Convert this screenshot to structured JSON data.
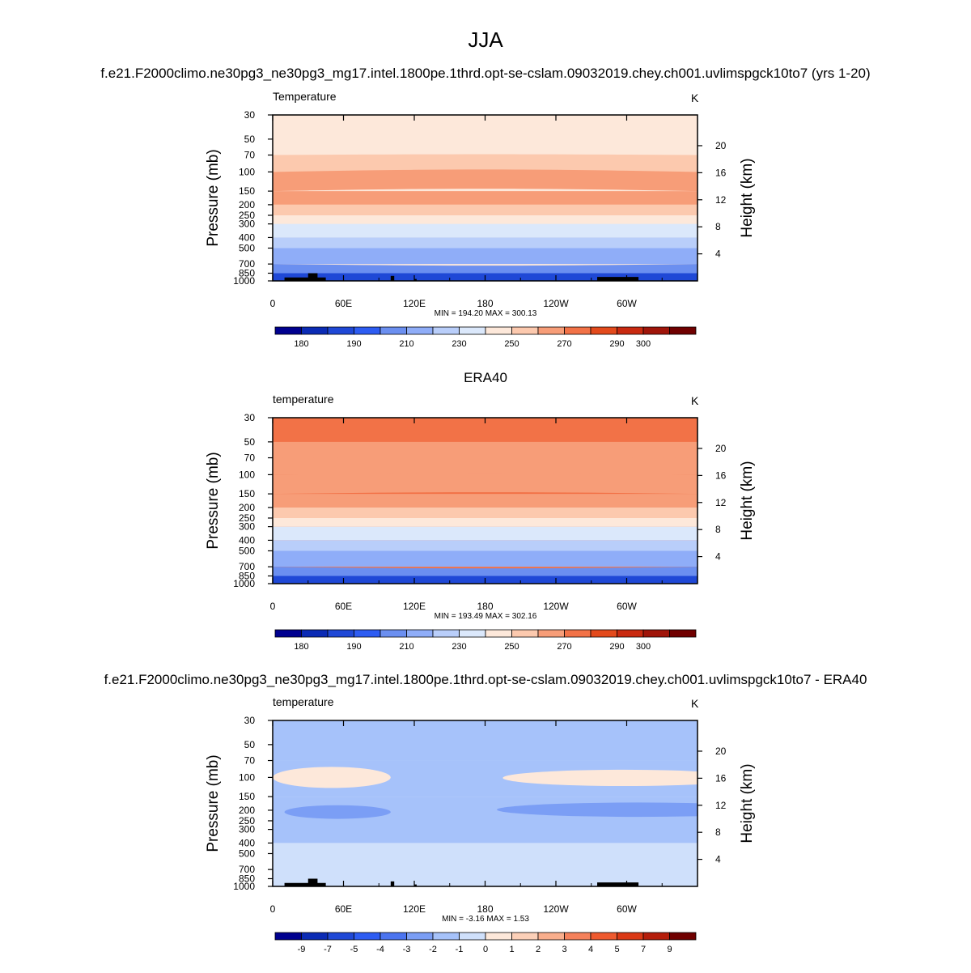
{
  "figure": {
    "title": "JJA",
    "case_name": "f.e21.F2000climo.ne30pg3_ne30pg3_mg17.intel.1800pe.1thrd.opt-se-cslam.09032019.chey.ch001.uvlimspgck10to7 (yrs 1-20)",
    "obs_name": "ERA40",
    "diff_name": "f.e21.F2000climo.ne30pg3_ne30pg3_mg17.intel.1800pe.1thrd.opt-se-cslam.09032019.chey.ch001.uvlimspgck10to7 - ERA40"
  },
  "colors": {
    "full_palette": [
      "#00008f",
      "#0b2bb5",
      "#1f48d6",
      "#2d5cf2",
      "#6b8ff0",
      "#8fadf8",
      "#b9cefa",
      "#dbe8fb",
      "#fde8da",
      "#fcc9ae",
      "#f79d78",
      "#f27247",
      "#e34a1c",
      "#c92a10",
      "#a0150a",
      "#700000"
    ],
    "diff_palette": [
      "#00008f",
      "#0b2bb5",
      "#1f48d6",
      "#2d5cf2",
      "#4b74f0",
      "#7b9ef5",
      "#a6c2fa",
      "#cfe0fb",
      "#fde8da",
      "#fcd0b8",
      "#f9ae8c",
      "#f5815b",
      "#ef5a2f",
      "#db3915",
      "#b51e0b",
      "#700000"
    ],
    "topography": "#000000"
  },
  "chart_data": [
    {
      "type": "heatmap",
      "panel_title": "Temperature",
      "units": "K",
      "ylabel": "Pressure (mb)",
      "ylabel_right": "Height (km)",
      "pressure_ticks": [
        "30",
        "50",
        "70",
        "100",
        "150",
        "200",
        "250",
        "300",
        "400",
        "500",
        "700",
        "850",
        "1000"
      ],
      "height_ticks": [
        "20",
        "16",
        "12",
        "8",
        "4"
      ],
      "lon_ticks": [
        "0",
        "60E",
        "120E",
        "180",
        "120W",
        "60W"
      ],
      "stats": "MIN = 194.20  MAX = 300.13",
      "colorbar_labels": [
        "180",
        "190",
        "210",
        "230",
        "250",
        "270",
        "290",
        "300"
      ],
      "levels": [
        [
          30,
          8,
          null
        ],
        [
          50,
          8,
          null
        ],
        [
          70,
          9,
          -1
        ],
        [
          100,
          10,
          -3
        ],
        [
          150,
          10,
          null
        ],
        [
          200,
          9,
          null
        ],
        [
          250,
          8,
          null
        ],
        [
          300,
          7,
          null
        ],
        [
          400,
          6,
          null
        ],
        [
          500,
          5,
          null
        ],
        [
          700,
          4,
          2
        ],
        [
          850,
          2,
          null
        ],
        [
          1000,
          1,
          null
        ]
      ],
      "topography": true
    },
    {
      "type": "heatmap",
      "panel_title": "temperature",
      "units": "K",
      "ylabel": "Pressure (mb)",
      "ylabel_right": "Height (km)",
      "pressure_ticks": [
        "30",
        "50",
        "70",
        "100",
        "150",
        "200",
        "250",
        "300",
        "400",
        "500",
        "700",
        "850",
        "1000"
      ],
      "height_ticks": [
        "20",
        "16",
        "12",
        "8",
        "4"
      ],
      "lon_ticks": [
        "0",
        "60E",
        "120E",
        "180",
        "120W",
        "60W"
      ],
      "stats": "MIN = 193.49  MAX = 302.16",
      "colorbar_labels": [
        "180",
        "190",
        "210",
        "230",
        "250",
        "270",
        "290",
        "300"
      ],
      "levels": [
        [
          30,
          11,
          null
        ],
        [
          50,
          10,
          null
        ],
        [
          70,
          10,
          -1
        ],
        [
          100,
          10,
          -2
        ],
        [
          150,
          10,
          null
        ],
        [
          200,
          9,
          null
        ],
        [
          250,
          8,
          null
        ],
        [
          300,
          7,
          null
        ],
        [
          400,
          6,
          null
        ],
        [
          500,
          5,
          null
        ],
        [
          700,
          4,
          2
        ],
        [
          850,
          2,
          null
        ],
        [
          1000,
          1,
          null
        ]
      ],
      "topography": false
    },
    {
      "type": "heatmap",
      "panel_title": "temperature",
      "units": "K",
      "ylabel": "Pressure (mb)",
      "ylabel_right": "Height (km)",
      "pressure_ticks": [
        "30",
        "50",
        "70",
        "100",
        "150",
        "200",
        "250",
        "300",
        "400",
        "500",
        "700",
        "850",
        "1000"
      ],
      "height_ticks": [
        "20",
        "16",
        "12",
        "8",
        "4"
      ],
      "lon_ticks": [
        "0",
        "60E",
        "120E",
        "180",
        "120W",
        "60W"
      ],
      "stats": "MIN =  -3.16  MAX =   1.53",
      "colorbar_labels": [
        "-9",
        "-7",
        "-5",
        "-4",
        "-3",
        "-2",
        "-1",
        "0",
        "1",
        "2",
        "3",
        "4",
        "5",
        "7",
        "9"
      ],
      "diff_bands": [
        [
          30,
          6
        ],
        [
          70,
          6
        ],
        [
          150,
          6
        ],
        [
          400,
          7
        ],
        [
          1000,
          7
        ]
      ],
      "diff_features": [
        {
          "lon": [
            0,
            100
          ],
          "p": [
            80,
            125
          ],
          "level": 8
        },
        {
          "lon": [
            195,
            400
          ],
          "p": [
            85,
            120
          ],
          "level": 8
        },
        {
          "lon": [
            190,
            430
          ],
          "p": [
            170,
            230
          ],
          "level": 5
        },
        {
          "lon": [
            10,
            100
          ],
          "p": [
            180,
            240
          ],
          "level": 5
        },
        {
          "lon": [
            20,
            200
          ],
          "p": [
            500,
            900
          ],
          "level": 7
        }
      ],
      "topography": true
    }
  ]
}
